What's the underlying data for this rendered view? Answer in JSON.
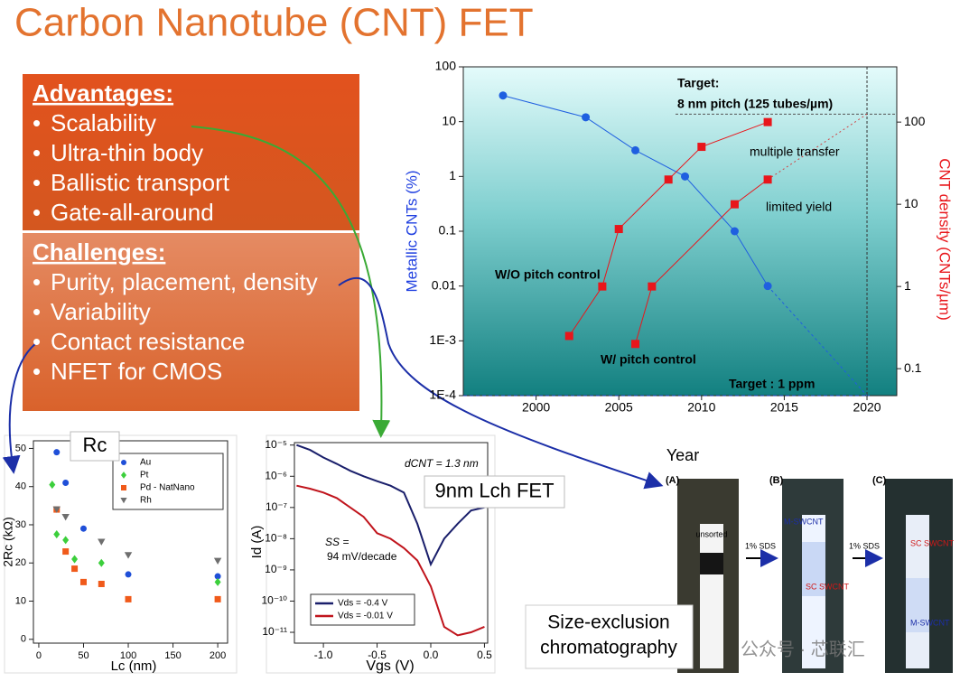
{
  "title": "Carbon Nanotube (CNT) FET",
  "advantages": {
    "heading": "Advantages:",
    "items": [
      "Scalability",
      "Ultra-thin body",
      "Ballistic transport",
      "Gate-all-around"
    ]
  },
  "challenges": {
    "heading": "Challenges:",
    "items": [
      "Purity, placement, density",
      "Variability",
      "Contact resistance",
      "NFET for CMOS"
    ]
  },
  "chart_data": [
    {
      "type": "line",
      "x_label": "Year",
      "y_label": "Metallic CNTs (%)",
      "y2_label": "CNT density (CNTs/µm)",
      "xlim": [
        1995.6,
        2021.8
      ],
      "xticks": [
        2000,
        2005,
        2010,
        2015,
        2020
      ],
      "ylog": true,
      "ylim": [
        0.0001,
        100
      ],
      "yticks": [
        {
          "value": 0.0001,
          "label": "1E-4"
        },
        {
          "value": 0.001,
          "label": "1E-3"
        },
        0.01,
        0.1,
        1,
        10,
        100
      ],
      "y2log": true,
      "y2lim": [
        0.047,
        470
      ],
      "y2ticks": [
        0.1,
        1,
        10,
        100
      ],
      "series": [
        {
          "color": "#1f5fe0",
          "marker": "circle",
          "x": [
            1998,
            2003,
            2006,
            2009,
            2012,
            2014
          ],
          "values": [
            30,
            12,
            3,
            1,
            0.1,
            0.01
          ]
        },
        {
          "name": "W/O pitch control",
          "axis": "y2",
          "color": "#e8161b",
          "marker": "square",
          "x": [
            2002,
            2004,
            2005,
            2008,
            2010,
            2014
          ],
          "values": [
            0.25,
            1,
            5,
            20,
            50,
            100
          ]
        },
        {
          "name": "W/ pitch control",
          "axis": "y2",
          "color": "#e8161b",
          "marker": "square",
          "x": [
            2006,
            2007,
            2012,
            2014
          ],
          "values": [
            0.2,
            1,
            10,
            20
          ]
        }
      ],
      "annotations": [
        "Target:",
        "8 nm pitch (125 tubes/µm)",
        "multiple transfer",
        "limited yield",
        "Target : 1 ppm"
      ],
      "targets": {
        "x": 2020,
        "y": 0.0001,
        "y2": 125
      }
    },
    {
      "type": "scatter",
      "title": "Rc",
      "x_label": "Lc (nm)",
      "y_label": "2Rc (kΩ)",
      "xlim": [
        -6,
        211
      ],
      "xticks": [
        0,
        50,
        100,
        150,
        200
      ],
      "ylim": [
        -1,
        52
      ],
      "yticks": [
        0,
        10,
        20,
        30,
        40,
        50
      ],
      "legend": "upper right",
      "series": [
        {
          "name": "Au",
          "color": "#1f4fd8",
          "marker": "circle",
          "x": [
            20,
            30,
            50,
            100,
            200
          ],
          "values": [
            49,
            41,
            29,
            17,
            16.5
          ]
        },
        {
          "name": "Pt",
          "color": "#3ccf3c",
          "marker": "diamond",
          "x": [
            15,
            20,
            30,
            40,
            70,
            200
          ],
          "values": [
            40.5,
            27.5,
            26,
            21,
            20,
            15
          ]
        },
        {
          "name": "Pd - NatNano",
          "color": "#f05a1a",
          "marker": "square",
          "x": [
            20,
            30,
            40,
            50,
            70,
            100,
            200
          ],
          "values": [
            34,
            23,
            18.5,
            15,
            14.5,
            10.5,
            10.5
          ]
        },
        {
          "name": "Rh",
          "color": "#6e6e6e",
          "marker": "triangle",
          "x": [
            20,
            30,
            70,
            100,
            200
          ],
          "values": [
            34,
            32,
            25.5,
            22,
            20.5
          ]
        }
      ]
    },
    {
      "type": "line",
      "title": "9nm Lch FET",
      "x_label": "Vgs (V)",
      "y_label": "Id (A)",
      "xlim": [
        -1.27,
        0.53
      ],
      "xticks": [
        {
          "value": -1,
          "label": "-1.0"
        },
        {
          "value": -0.5,
          "label": "-0.5"
        },
        {
          "value": 0,
          "label": "0.0"
        },
        {
          "value": 0.5,
          "label": "0.5"
        }
      ],
      "ylog": true,
      "ylim": [
        4.5e-12,
        1.2e-05
      ],
      "yticks": [
        {
          "value": 1e-11,
          "label": "10⁻¹¹"
        },
        {
          "value": 1e-10,
          "label": "10⁻¹⁰"
        },
        {
          "value": 1e-09,
          "label": "10⁻⁹"
        },
        {
          "value": 1e-08,
          "label": "10⁻⁸"
        },
        {
          "value": 1e-07,
          "label": "10⁻⁷"
        },
        {
          "value": 1e-06,
          "label": "10⁻⁶"
        },
        {
          "value": 1e-05,
          "label": "10⁻⁵"
        }
      ],
      "legend": "lower left",
      "series": [
        {
          "name": "Vds = -0.4 V",
          "color": "#1a1f6b",
          "x": [
            -1.25,
            -1.125,
            -1,
            -0.875,
            -0.75,
            -0.625,
            -0.5,
            -0.375,
            -0.25,
            -0.125,
            0,
            0.125,
            0.25,
            0.375,
            0.5
          ],
          "values": [
            1e-05,
            7e-06,
            4e-06,
            2.5e-06,
            1.5e-06,
            1e-06,
            7e-07,
            5e-07,
            3e-07,
            3e-08,
            1.5e-09,
            1e-08,
            3e-08,
            8e-08,
            1e-07
          ]
        },
        {
          "name": "Vds = -0.01 V",
          "color": "#c0141c",
          "x": [
            -1.25,
            -1.125,
            -1,
            -0.875,
            -0.75,
            -0.625,
            -0.5,
            -0.375,
            -0.25,
            -0.125,
            0,
            0.125,
            0.25,
            0.375,
            0.5
          ],
          "values": [
            5e-07,
            4e-07,
            3e-07,
            2e-07,
            1e-07,
            5e-08,
            1.5e-08,
            1e-08,
            5e-09,
            2e-09,
            3e-10,
            1.5e-11,
            8e-12,
            1e-11,
            1.5e-11
          ]
        }
      ],
      "annotations": [
        "dCNT = 1.3 nm",
        "SS =",
        "94 mV/decade"
      ]
    }
  ],
  "photo": {
    "caption": "Size-exclusion chromatography",
    "panels": [
      "(A)",
      "(B)",
      "(C)"
    ],
    "labels": [
      "unsorted",
      "1% SDS",
      "1% SDS",
      "M-SWCNT",
      "SC SWCNT",
      "SC SWCNT",
      "M-SWCNT"
    ]
  },
  "watermark": "公众号 · 芯联汇"
}
